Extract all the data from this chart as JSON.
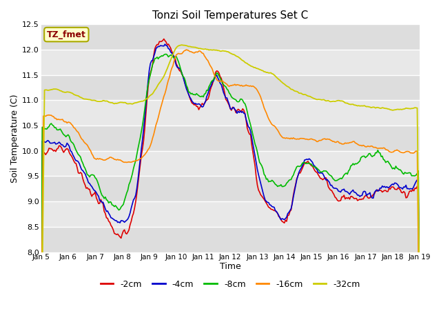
{
  "title": "Tonzi Soil Temperatures Set C",
  "xlabel": "Time",
  "ylabel": "Soil Temperature (C)",
  "ylim": [
    8.0,
    12.5
  ],
  "xlim": [
    0,
    336
  ],
  "plot_bg_color": "#e8e8e8",
  "grid_color": "white",
  "annotation_text": "TZ_fmet",
  "annotation_fg": "#8b0000",
  "annotation_bg": "#ffffcc",
  "legend_labels": [
    "-2cm",
    "-4cm",
    "-8cm",
    "-16cm",
    "-32cm"
  ],
  "legend_colors": [
    "#dd0000",
    "#0000cc",
    "#00bb00",
    "#ff8800",
    "#cccc00"
  ],
  "line_colors": {
    "2cm": "#dd0000",
    "4cm": "#0000cc",
    "8cm": "#00bb00",
    "16cm": "#ff8800",
    "32cm": "#cccc00"
  },
  "tick_labels": [
    "Jan 5",
    "Jan 6",
    "Jan 7",
    "Jan 8",
    "Jan 9",
    "Jan 10",
    "Jan 11",
    "Jan 12",
    "Jan 13",
    "Jan 14",
    "Jan 15",
    "Jan 16",
    "Jan 17",
    "Jan 18",
    "Jan 19"
  ],
  "tick_positions": [
    0,
    24,
    48,
    72,
    96,
    120,
    144,
    168,
    192,
    216,
    240,
    264,
    288,
    312,
    336
  ],
  "yticks": [
    8.0,
    8.5,
    9.0,
    9.5,
    10.0,
    10.5,
    11.0,
    11.5,
    12.0,
    12.5
  ]
}
